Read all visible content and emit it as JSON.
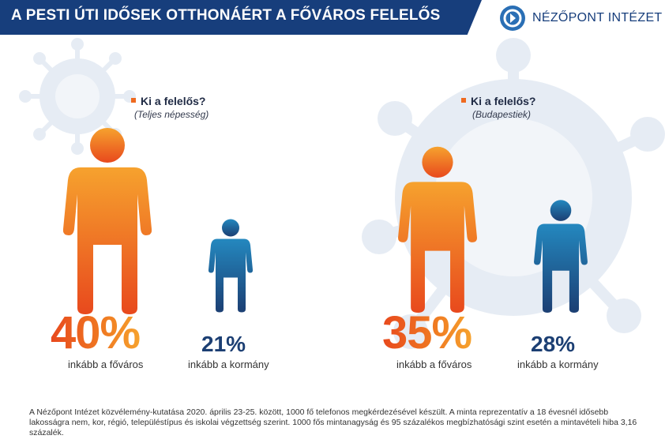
{
  "header": {
    "title": "A PESTI ÚTI IDŐSEK OTTHONÁÉRT A FŐVÁROS FELELŐS",
    "logo_text": "NÉZŐPONT INTÉZET"
  },
  "colors": {
    "banner": "#173e7c",
    "orange": "#f07b22",
    "blue": "#1c4f86",
    "accent_square": "#ef6a1f"
  },
  "chart_data": [
    {
      "type": "pictograph",
      "question": "Ki a felelős?",
      "group": "(Teljes népesség)",
      "categories": [
        "inkább a főváros",
        "inkább a kormány"
      ],
      "values": [
        40,
        21
      ],
      "value_labels": [
        "40%",
        "21%"
      ]
    },
    {
      "type": "pictograph",
      "question": "Ki a felelős?",
      "group": "(Budapestiek)",
      "categories": [
        "inkább a főváros",
        "inkább a kormány"
      ],
      "values": [
        35,
        28
      ],
      "value_labels": [
        "35%",
        "28%"
      ]
    }
  ],
  "footnote": "A Nézőpont Intézet közvélemény-kutatása 2020. április 23-25. között, 1000 fő telefonos megkérdezésével készült. A minta reprezentatív a 18 évesnél idősebb lakosságra nem, kor, régió, településtípus és iskolai végzettség szerint. 1000 fős mintanagyság és 95 százalékos megbízhatósági szint esetén a mintavételi hiba 3,16 százalék."
}
